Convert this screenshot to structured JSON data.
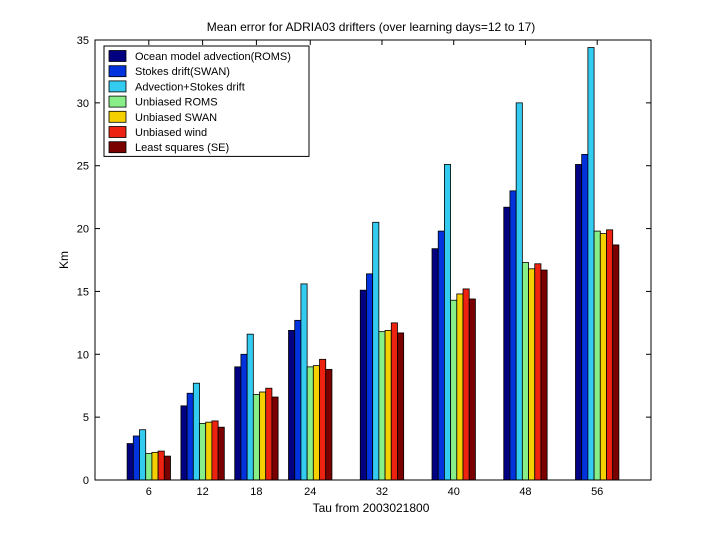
{
  "chart_data": {
    "type": "bar",
    "title": "Mean error for ADRIA03 drifters (over learning days=12 to 17)",
    "xlabel": "Tau from 2003021800",
    "ylabel": "Km",
    "ylim": [
      0,
      35
    ],
    "yticks": [
      "0",
      "5",
      "10",
      "15",
      "20",
      "25",
      "30",
      "35"
    ],
    "categories": [
      "6",
      "12",
      "18",
      "24",
      "32",
      "40",
      "48",
      "56"
    ],
    "legend_position": "top-left",
    "series": [
      {
        "name": "Ocean model advection(ROMS)",
        "color": "#000080",
        "values": [
          2.9,
          5.9,
          9.0,
          11.9,
          15.1,
          18.4,
          21.7,
          25.1
        ]
      },
      {
        "name": "Stokes drift(SWAN)",
        "color": "#0033dd",
        "values": [
          3.5,
          6.9,
          10.0,
          12.7,
          16.4,
          19.8,
          23.0,
          25.9
        ]
      },
      {
        "name": "Advection+Stokes drift",
        "color": "#33ccf0",
        "values": [
          4.0,
          7.7,
          11.6,
          15.6,
          20.5,
          25.1,
          30.0,
          34.4
        ]
      },
      {
        "name": "Unbiased ROMS",
        "color": "#88ee88",
        "values": [
          2.1,
          4.5,
          6.8,
          9.0,
          11.8,
          14.3,
          17.3,
          19.8
        ]
      },
      {
        "name": "Unbiased SWAN",
        "color": "#f5d000",
        "values": [
          2.2,
          4.6,
          7.0,
          9.1,
          11.9,
          14.8,
          16.8,
          19.6
        ]
      },
      {
        "name": "Unbiased wind",
        "color": "#ee2211",
        "values": [
          2.3,
          4.7,
          7.3,
          9.6,
          12.5,
          15.2,
          17.2,
          19.9
        ]
      },
      {
        "name": "Least squares (SE)",
        "color": "#7a0000",
        "values": [
          1.9,
          4.2,
          6.6,
          8.8,
          11.7,
          14.4,
          16.7,
          18.7
        ]
      }
    ]
  }
}
